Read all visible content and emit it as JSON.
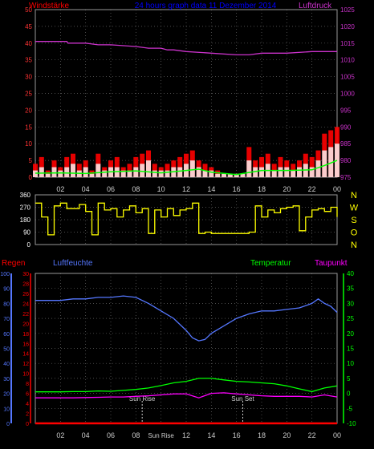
{
  "chart_data": [
    {
      "type": "area",
      "title": "24 hours graph data  11 Dezember 2014",
      "label_left": "Windstärke",
      "label_right": "Luftdruck",
      "x_ticks": [
        "02",
        "04",
        "06",
        "08",
        "10",
        "12",
        "14",
        "16",
        "18",
        "20",
        "22",
        "00"
      ],
      "y_left": {
        "min": 0,
        "max": 50,
        "ticks": [
          0,
          5,
          10,
          15,
          20,
          25,
          30,
          35,
          40,
          45,
          50
        ]
      },
      "y_right": {
        "min": 975,
        "max": 1025,
        "ticks": [
          975,
          980,
          985,
          990,
          995,
          1000,
          1005,
          1010,
          1015,
          1020,
          1025
        ]
      },
      "grid": true,
      "colors": {
        "gust": "#ff0000",
        "wind": "#ffffff",
        "average": "#00ff00",
        "pressure": "#cc33cc",
        "title": "#0000ff",
        "left_label": "#ff0000",
        "right_label": "#cc33cc"
      },
      "series": [
        {
          "role": "gust",
          "x": [
            0,
            0.5,
            1,
            1.5,
            2,
            2.5,
            3,
            3.5,
            4,
            4.5,
            5,
            5.5,
            6,
            6.5,
            7,
            7.5,
            8,
            8.5,
            9,
            9.5,
            10,
            10.5,
            11,
            11.5,
            12,
            12.5,
            13,
            13.5,
            14,
            14.5,
            15,
            15.5,
            16,
            16.5,
            17,
            17.5,
            18,
            18.5,
            19,
            19.5,
            20,
            20.5,
            21,
            21.5,
            22,
            22.5,
            23,
            23.5,
            24
          ],
          "values": [
            4,
            6,
            2,
            5,
            3,
            6,
            7,
            4,
            5,
            2,
            7,
            3,
            5,
            6,
            3,
            4,
            6,
            7,
            8,
            4,
            3,
            4,
            5,
            6,
            7,
            8,
            5,
            4,
            3,
            2,
            1,
            1,
            1,
            1,
            9,
            5,
            6,
            7,
            4,
            6,
            5,
            4,
            5,
            7,
            6,
            8,
            13,
            14,
            15
          ]
        },
        {
          "role": "wind",
          "x": [
            0,
            0.5,
            1,
            1.5,
            2,
            2.5,
            3,
            3.5,
            4,
            4.5,
            5,
            5.5,
            6,
            6.5,
            7,
            7.5,
            8,
            8.5,
            9,
            9.5,
            10,
            10.5,
            11,
            11.5,
            12,
            12.5,
            13,
            13.5,
            14,
            14.5,
            15,
            15.5,
            16,
            16.5,
            17,
            17.5,
            18,
            18.5,
            19,
            19.5,
            20,
            20.5,
            21,
            21.5,
            22,
            22.5,
            23,
            23.5,
            24
          ],
          "values": [
            2,
            3,
            1,
            3,
            2,
            3,
            4,
            2,
            3,
            1,
            4,
            2,
            3,
            3,
            2,
            2,
            3,
            4,
            5,
            2,
            2,
            2,
            3,
            3,
            4,
            5,
            3,
            2,
            2,
            1,
            1,
            1,
            1,
            1,
            5,
            3,
            3,
            4,
            2,
            3,
            3,
            2,
            3,
            4,
            3,
            5,
            8,
            9,
            10
          ]
        },
        {
          "role": "average",
          "x": [
            0,
            2,
            4,
            6,
            8,
            10,
            12,
            13,
            14,
            16,
            17,
            18,
            20,
            22,
            23,
            24
          ],
          "values": [
            1.2,
            1.3,
            1.1,
            1.6,
            1.9,
            1.3,
            2,
            2.4,
            1.5,
            0.8,
            1.4,
            2,
            2,
            2.2,
            3.5,
            5
          ]
        },
        {
          "role": "pressure",
          "x": [
            0,
            2.5,
            2.6,
            4,
            5,
            6,
            8,
            9,
            10,
            10.5,
            11,
            12,
            14,
            16,
            17,
            18,
            20,
            22,
            24
          ],
          "values": [
            1015.5,
            1015.5,
            1015,
            1015,
            1014.5,
            1014.5,
            1014,
            1013.5,
            1013.5,
            1013,
            1013,
            1012.5,
            1012,
            1011.5,
            1011.5,
            1012,
            1012,
            1012.5,
            1012.5
          ]
        }
      ]
    },
    {
      "type": "line",
      "x_ticks": [
        "02",
        "04",
        "06",
        "08",
        "10",
        "12",
        "14",
        "16",
        "18",
        "20",
        "22",
        "00"
      ],
      "y_left": {
        "min": 0,
        "max": 360,
        "ticks": [
          0,
          90,
          180,
          270,
          360
        ]
      },
      "right_labels": [
        "N",
        "W",
        "S",
        "O",
        "N"
      ],
      "grid": true,
      "colors": {
        "direction": "#ffff00",
        "right_labels": "#ffff00"
      },
      "series": [
        {
          "role": "wind-direction",
          "x": [
            0,
            0.5,
            1,
            1.5,
            2,
            2.5,
            3,
            3.5,
            4,
            4.5,
            5,
            5.5,
            6,
            6.5,
            7,
            7.5,
            8,
            8.5,
            9,
            9.5,
            10,
            10.5,
            11,
            11.5,
            12,
            12.5,
            13,
            13.5,
            14,
            14.5,
            15,
            15.5,
            16,
            16.5,
            17,
            17.5,
            18,
            18.5,
            19,
            19.5,
            20,
            20.5,
            21,
            21.5,
            22,
            22.5,
            23,
            23.5,
            24
          ],
          "values": [
            300,
            200,
            70,
            280,
            300,
            260,
            260,
            290,
            240,
            70,
            300,
            250,
            260,
            200,
            250,
            280,
            230,
            260,
            80,
            250,
            200,
            260,
            210,
            250,
            260,
            300,
            80,
            90,
            80,
            80,
            80,
            80,
            80,
            80,
            90,
            280,
            200,
            250,
            230,
            260,
            270,
            280,
            100,
            200,
            250,
            260,
            240,
            270,
            200
          ]
        }
      ]
    },
    {
      "type": "line",
      "header_labels": {
        "rain": "Regen",
        "humidity": "Luftfeuchte",
        "temperature": "Temperatur",
        "dewpoint": "Taupunkt"
      },
      "x_ticks": [
        "02",
        "04",
        "06",
        "08",
        "Sun Rise",
        "12",
        "14",
        "16",
        "18",
        "20",
        "22",
        "00"
      ],
      "annotations": [
        {
          "x": 8.5,
          "text": "Sun Rise"
        },
        {
          "x": 16.5,
          "text": "Sun Set"
        }
      ],
      "y_humidity": {
        "min": 0,
        "max": 100,
        "ticks": [
          0,
          10,
          20,
          30,
          40,
          50,
          60,
          70,
          80,
          90,
          100
        ]
      },
      "y_rain": {
        "min": 0,
        "max": 30,
        "ticks": [
          0,
          2,
          4,
          6,
          8,
          10,
          12,
          14,
          16,
          18,
          20,
          22,
          24,
          26,
          28,
          30
        ]
      },
      "y_temperature": {
        "min": -10,
        "max": 40,
        "ticks": [
          -10,
          -5,
          0,
          5,
          10,
          15,
          20,
          25,
          30,
          35,
          40
        ]
      },
      "grid": true,
      "colors": {
        "rain": "#ff0000",
        "humidity": "#5577ff",
        "temperature": "#00ff00",
        "dewpoint": "#ff00ff",
        "humidity_axis": "#5577ff",
        "rain_axis": "#ff0000",
        "temp_axis": "#00ff00"
      },
      "series": [
        {
          "role": "humidity",
          "x": [
            0,
            1,
            2,
            3,
            4,
            5,
            6,
            7,
            8,
            9,
            10,
            11,
            12,
            12.5,
            13,
            13.5,
            14,
            15,
            16,
            17,
            18,
            19,
            20,
            21,
            22,
            22.5,
            23,
            23.5,
            24
          ],
          "values": [
            82,
            82,
            82,
            83,
            83,
            84,
            84,
            85,
            84,
            80,
            75,
            70,
            62,
            57,
            55,
            56,
            60,
            65,
            70,
            73,
            75,
            75,
            76,
            77,
            80,
            83,
            80,
            78,
            74
          ]
        },
        {
          "role": "temperature",
          "x": [
            0,
            1,
            2,
            3,
            4,
            5,
            6,
            7,
            8,
            9,
            10,
            11,
            12,
            13,
            14,
            15,
            16,
            17,
            18,
            19,
            20,
            21,
            22,
            23,
            24
          ],
          "values": [
            0.5,
            0.5,
            0.5,
            0.6,
            0.6,
            0.8,
            0.7,
            1,
            1.3,
            1.8,
            2.6,
            3.5,
            4,
            5,
            5,
            4.5,
            4,
            3.8,
            3.5,
            3.2,
            2.5,
            1.5,
            0.6,
            1.8,
            2.5
          ]
        },
        {
          "role": "dewpoint",
          "x": [
            0,
            1,
            2,
            3,
            4,
            5,
            6,
            7,
            8,
            9,
            10,
            11,
            12,
            13,
            14,
            15,
            16,
            17,
            18,
            19,
            20,
            21,
            22,
            23,
            24
          ],
          "values": [
            -1.5,
            -1.5,
            -1.5,
            -1.5,
            -1.4,
            -1.3,
            -1.2,
            -1.2,
            -1,
            -0.8,
            -0.5,
            -0.2,
            -0.2,
            -1.5,
            0,
            0.2,
            -0.2,
            -0.5,
            -0.8,
            -1,
            -1,
            -1,
            -1.2,
            -0.5,
            -1.2
          ]
        },
        {
          "role": "rain",
          "x": [
            0,
            24
          ],
          "values": [
            0,
            0
          ]
        }
      ]
    }
  ]
}
